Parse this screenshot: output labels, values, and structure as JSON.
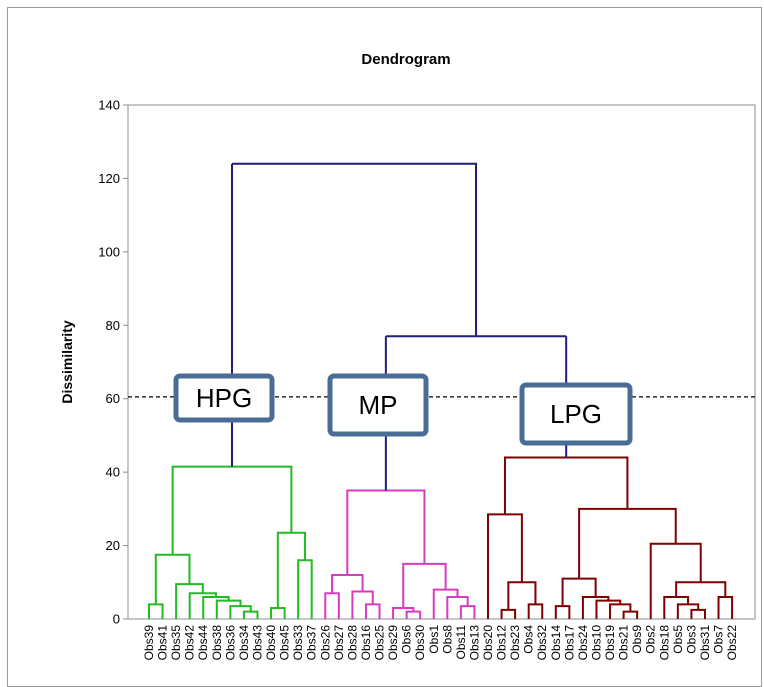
{
  "chart_data": {
    "type": "dendrogram",
    "title": "Dendrogram",
    "ylabel": "Dissimilarity",
    "ylim": [
      0,
      140
    ],
    "yticks": [
      0,
      20,
      40,
      60,
      80,
      100,
      120,
      140
    ],
    "cut_level": 60.5,
    "leaves": [
      "Obs39",
      "Obs41",
      "Obs35",
      "Obs42",
      "Obs44",
      "Obs38",
      "Obs36",
      "Obs34",
      "Obs43",
      "Obs40",
      "Obs45",
      "Obs33",
      "Obs37",
      "Obs26",
      "Obs27",
      "Obs28",
      "Obs16",
      "Obs25",
      "Obs29",
      "Obs6",
      "Obs30",
      "Obs1",
      "Obs8",
      "Obs11",
      "Obs13",
      "Obs20",
      "Obs12",
      "Obs23",
      "Obs4",
      "Obs32",
      "Obs14",
      "Obs17",
      "Obs24",
      "Obs10",
      "Obs19",
      "Obs21",
      "Obs9",
      "Obs2",
      "Obs18",
      "Obs5",
      "Obs3",
      "Obs31",
      "Obs7",
      "Obs22"
    ],
    "groups": [
      {
        "label": "HPG",
        "color": "#22bb22"
      },
      {
        "label": "MP",
        "color": "#d63cc0"
      },
      {
        "label": "LPG",
        "color": "#7f0000"
      }
    ],
    "root_color": "#1f1f7a",
    "tree": {
      "h": 124,
      "c": [
        {
          "g": 0,
          "h": 41.5,
          "c": [
            {
              "h": 17.5,
              "c": [
                {
                  "h": 4,
                  "c": [
                    0,
                    1
                  ]
                },
                {
                  "h": 9.5,
                  "c": [
                    2,
                    {
                      "h": 7,
                      "c": [
                        3,
                        {
                          "h": 6,
                          "c": [
                            4,
                            {
                              "h": 5,
                              "c": [
                                5,
                                {
                                  "h": 3.5,
                                  "c": [
                                    6,
                                    {
                                      "h": 2,
                                      "c": [
                                        7,
                                        8
                                      ]
                                    }
                                  ]
                                }
                              ]
                            }
                          ]
                        }
                      ]
                    }
                  ]
                }
              ]
            },
            {
              "h": 23.5,
              "c": [
                {
                  "h": 3,
                  "c": [
                    9,
                    10
                  ]
                },
                {
                  "h": 16,
                  "c": [
                    11,
                    12
                  ]
                }
              ]
            }
          ]
        },
        {
          "h": 77,
          "c": [
            {
              "g": 1,
              "h": 35,
              "c": [
                {
                  "h": 12,
                  "c": [
                    {
                      "h": 7,
                      "c": [
                        13,
                        14
                      ]
                    },
                    {
                      "h": 7.5,
                      "c": [
                        15,
                        {
                          "h": 4,
                          "c": [
                            16,
                            17
                          ]
                        }
                      ]
                    }
                  ]
                },
                {
                  "h": 15,
                  "c": [
                    {
                      "h": 3,
                      "c": [
                        18,
                        {
                          "h": 2,
                          "c": [
                            19,
                            20
                          ]
                        }
                      ]
                    },
                    {
                      "h": 8,
                      "c": [
                        21,
                        {
                          "h": 6,
                          "c": [
                            22,
                            {
                              "h": 3.5,
                              "c": [
                                23,
                                24
                              ]
                            }
                          ]
                        }
                      ]
                    }
                  ]
                }
              ]
            },
            {
              "g": 2,
              "h": 44,
              "c": [
                {
                  "h": 28.5,
                  "c": [
                    25,
                    {
                      "h": 10,
                      "c": [
                        {
                          "h": 2.5,
                          "c": [
                            26,
                            27
                          ]
                        },
                        {
                          "h": 4,
                          "c": [
                            28,
                            29
                          ]
                        }
                      ]
                    }
                  ]
                },
                {
                  "h": 30,
                  "c": [
                    {
                      "h": 11,
                      "c": [
                        {
                          "h": 3.5,
                          "c": [
                            30,
                            31
                          ]
                        },
                        {
                          "h": 6,
                          "c": [
                            32,
                            {
                              "h": 5,
                              "c": [
                                33,
                                {
                                  "h": 4,
                                  "c": [
                                    34,
                                    {
                                      "h": 2,
                                      "c": [
                                        35,
                                        36
                                      ]
                                    }
                                  ]
                                }
                              ]
                            }
                          ]
                        }
                      ]
                    },
                    {
                      "h": 20.5,
                      "c": [
                        37,
                        {
                          "h": 10.5,
                          "c": [
                            {
                              "h": 10,
                              "c": [
                                {
                                  "h": 6,
                                  "c": [
                                    38,
                                    {
                                      "h": 4,
                                      "c": [
                                        39,
                                        {
                                          "h": 2.5,
                                          "c": [
                                            40,
                                            41
                                          ]
                                        }
                                      ]
                                    }
                                  ]
                                },
                                {
                                  "h": 6,
                                  "c": [
                                    42,
                                    43
                                  ]
                                }
                              ]
                            }
                          ]
                        }
                      ]
                    }
                  ]
                }
              ]
            }
          ]
        }
      ]
    }
  }
}
